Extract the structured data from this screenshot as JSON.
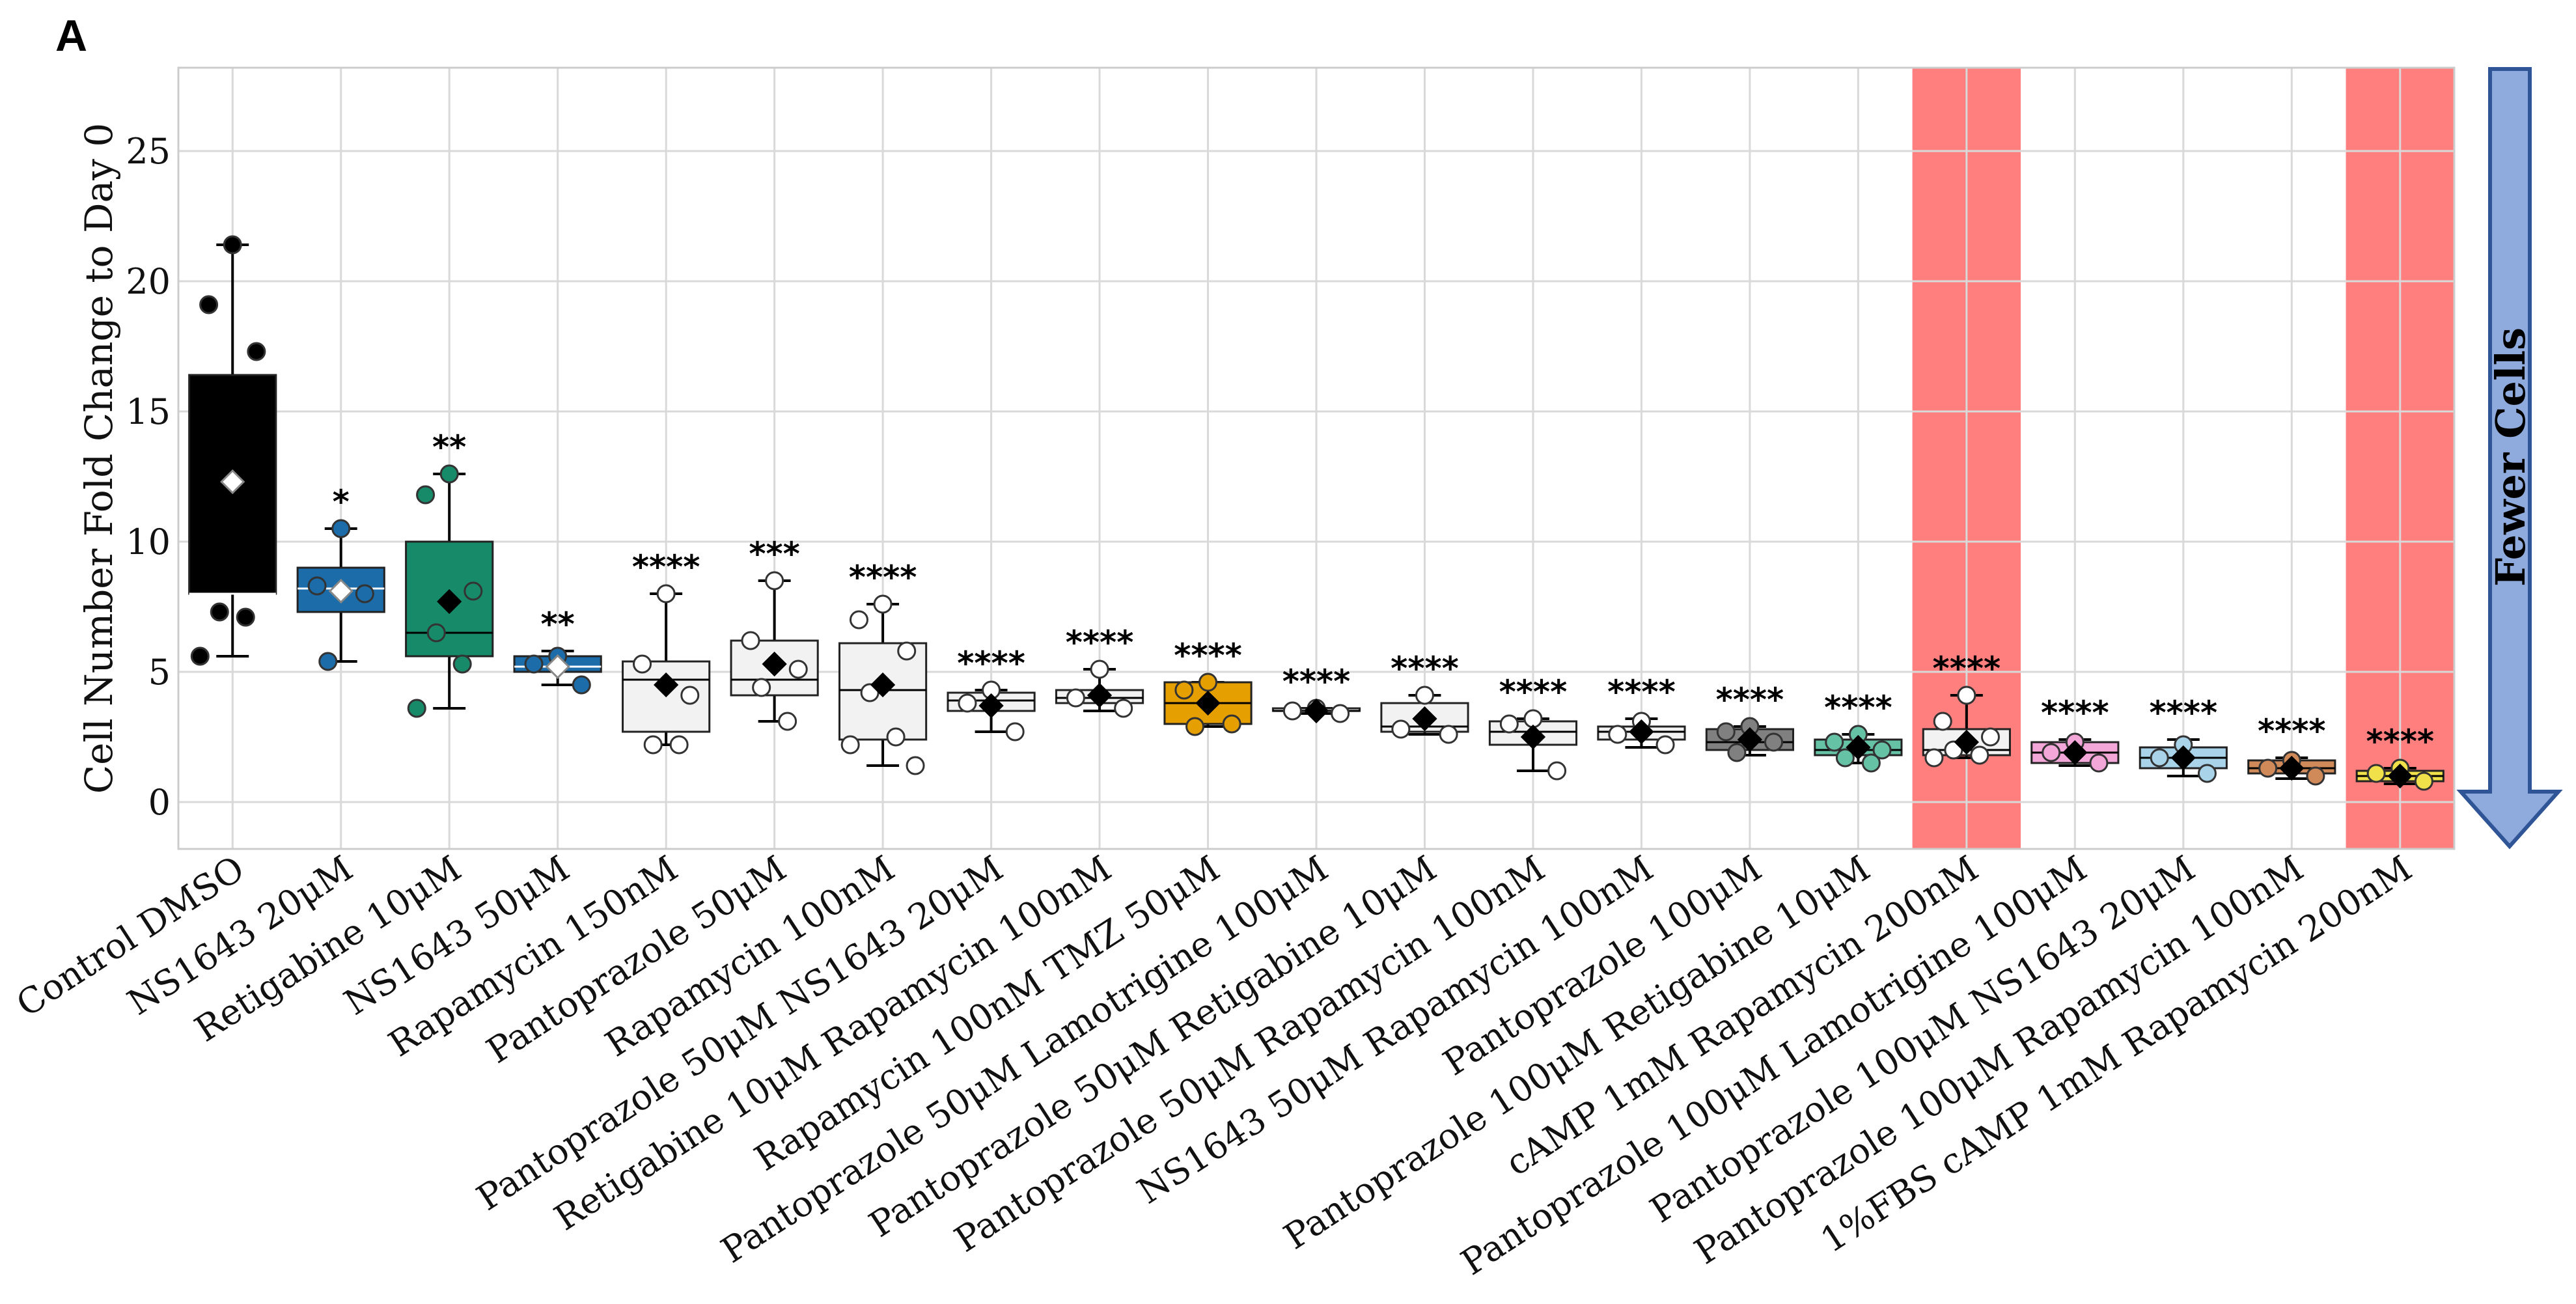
{
  "panel_label": "A",
  "arrow_label": "Fewer Cells",
  "colors": {
    "highlight": "#ff7f7f",
    "arrow_fill": "#8faadc",
    "arrow_stroke": "#2f5597",
    "grid": "#d9d9d9",
    "mean_marker_dark": "#000000",
    "mean_marker_light": "#ffffff"
  },
  "chart_data": {
    "type": "box",
    "title": "",
    "xlabel": "",
    "ylabel": "Cell Number Fold Change to Day 0",
    "ylim": [
      -1.8,
      28.2
    ],
    "yticks": [
      0,
      5,
      10,
      15,
      20,
      25
    ],
    "grid": true,
    "highlighted_categories": [
      "cAMP 1mM Rapamycin 200nM",
      "1%FBS cAMP 1mM Rapamycin 200nM"
    ],
    "groups": [
      {
        "label": "Control DMSO",
        "color": "#000000",
        "stat": "",
        "whisker_low": 5.6,
        "q1": 8.0,
        "median": 8.0,
        "q3": 16.4,
        "whisker_high": 21.4,
        "mean": 12.3,
        "points": [
          21.4,
          19.1,
          17.3,
          7.3,
          7.1,
          5.6
        ]
      },
      {
        "label": "NS1643 20μM",
        "color": "#1b6ca8",
        "stat": "*",
        "whisker_low": 5.4,
        "q1": 7.3,
        "median": 8.2,
        "q3": 9.0,
        "whisker_high": 10.5,
        "mean": 8.1,
        "points": [
          10.5,
          8.3,
          8.0,
          5.4
        ]
      },
      {
        "label": "Retigabine 10μM",
        "color": "#178b69",
        "stat": "**",
        "whisker_low": 3.6,
        "q1": 5.6,
        "median": 6.5,
        "q3": 10.0,
        "whisker_high": 12.6,
        "mean": 7.7,
        "points": [
          12.6,
          11.8,
          8.1,
          6.5,
          5.3,
          3.6
        ]
      },
      {
        "label": "NS1643 50μM",
        "color": "#1b6ca8",
        "stat": "**",
        "whisker_low": 4.5,
        "q1": 5.0,
        "median": 5.2,
        "q3": 5.6,
        "whisker_high": 5.8,
        "mean": 5.2,
        "points": [
          5.6,
          5.3,
          4.5
        ]
      },
      {
        "label": "Rapamycin 150nM",
        "color": "#f2f2f2",
        "stat": "****",
        "whisker_low": 2.2,
        "q1": 2.7,
        "median": 4.7,
        "q3": 5.4,
        "whisker_high": 8.0,
        "mean": 4.5,
        "points": [
          8.0,
          5.3,
          4.1,
          2.2,
          2.2
        ]
      },
      {
        "label": "Pantoprazole 50μM",
        "color": "#f2f2f2",
        "stat": "***",
        "whisker_low": 3.1,
        "q1": 4.1,
        "median": 4.7,
        "q3": 6.2,
        "whisker_high": 8.5,
        "mean": 5.3,
        "points": [
          8.5,
          6.2,
          5.1,
          4.4,
          3.1
        ]
      },
      {
        "label": "Rapamycin 100nM",
        "color": "#f2f2f2",
        "stat": "****",
        "whisker_low": 1.4,
        "q1": 2.4,
        "median": 4.3,
        "q3": 6.1,
        "whisker_high": 7.6,
        "mean": 4.5,
        "points": [
          7.6,
          7.0,
          5.8,
          4.2,
          2.5,
          2.2,
          1.4
        ]
      },
      {
        "label": "Pantoprazole 50μM NS1643 20μM",
        "color": "#f2f2f2",
        "stat": "****",
        "whisker_low": 2.7,
        "q1": 3.5,
        "median": 3.9,
        "q3": 4.2,
        "whisker_high": 4.3,
        "mean": 3.7,
        "points": [
          4.3,
          3.8,
          2.7
        ]
      },
      {
        "label": "Retigabine 10μM Rapamycin 100nM",
        "color": "#f2f2f2",
        "stat": "****",
        "whisker_low": 3.5,
        "q1": 3.8,
        "median": 4.0,
        "q3": 4.3,
        "whisker_high": 5.1,
        "mean": 4.1,
        "points": [
          5.1,
          4.0,
          3.6
        ]
      },
      {
        "label": "Rapamycin 100nM TMZ 50μM",
        "color": "#e69f00",
        "stat": "****",
        "whisker_low": 2.9,
        "q1": 3.0,
        "median": 3.8,
        "q3": 4.6,
        "whisker_high": 4.6,
        "mean": 3.8,
        "points": [
          4.6,
          4.3,
          3.0,
          2.9
        ]
      },
      {
        "label": "Pantoprazole 50μM Lamotrigine 100μM",
        "color": "#f2f2f2",
        "stat": "****",
        "whisker_low": 3.4,
        "q1": 3.5,
        "median": 3.5,
        "q3": 3.6,
        "whisker_high": 3.6,
        "mean": 3.5,
        "points": [
          3.6,
          3.5,
          3.4
        ]
      },
      {
        "label": "Pantoprazole 50μM Retigabine 10μM",
        "color": "#f2f2f2",
        "stat": "****",
        "whisker_low": 2.6,
        "q1": 2.7,
        "median": 2.9,
        "q3": 3.8,
        "whisker_high": 4.1,
        "mean": 3.2,
        "points": [
          4.1,
          2.8,
          2.6
        ]
      },
      {
        "label": "Pantoprazole 50μM Rapamycin 100nM",
        "color": "#f2f2f2",
        "stat": "****",
        "whisker_low": 1.2,
        "q1": 2.2,
        "median": 2.7,
        "q3": 3.1,
        "whisker_high": 3.2,
        "mean": 2.5,
        "points": [
          3.2,
          3.0,
          1.2
        ]
      },
      {
        "label": "NS1643 50μM Rapamycin 100nM",
        "color": "#f2f2f2",
        "stat": "****",
        "whisker_low": 2.1,
        "q1": 2.4,
        "median": 2.7,
        "q3": 2.9,
        "whisker_high": 3.2,
        "mean": 2.7,
        "points": [
          3.1,
          2.6,
          2.2
        ]
      },
      {
        "label": "Pantoprazole 100μM",
        "color": "#808080",
        "stat": "****",
        "whisker_low": 1.8,
        "q1": 2.0,
        "median": 2.3,
        "q3": 2.8,
        "whisker_high": 2.9,
        "mean": 2.4,
        "points": [
          2.9,
          2.7,
          2.3,
          1.9
        ]
      },
      {
        "label": "Pantoprazole 100μM Retigabine 10μM",
        "color": "#66c2a5",
        "stat": "****",
        "whisker_low": 1.5,
        "q1": 1.8,
        "median": 2.0,
        "q3": 2.4,
        "whisker_high": 2.6,
        "mean": 2.1,
        "points": [
          2.6,
          2.3,
          2.0,
          1.7,
          1.5
        ]
      },
      {
        "label": "cAMP 1mM Rapamycin 200nM",
        "color": "#f2f2f2",
        "stat": "****",
        "whisker_low": 1.7,
        "q1": 1.8,
        "median": 2.0,
        "q3": 2.8,
        "whisker_high": 4.1,
        "mean": 2.3,
        "points": [
          4.1,
          3.1,
          2.5,
          2.0,
          1.8,
          1.7
        ]
      },
      {
        "label": "Pantoprazole 100μM Lamotrigine 100μM",
        "color": "#f3a6d8",
        "stat": "****",
        "whisker_low": 1.4,
        "q1": 1.5,
        "median": 1.9,
        "q3": 2.3,
        "whisker_high": 2.4,
        "mean": 1.9,
        "points": [
          2.3,
          1.9,
          1.5
        ]
      },
      {
        "label": "Pantoprazole 100μM NS1643 20μM",
        "color": "#a9d3e8",
        "stat": "****",
        "whisker_low": 1.0,
        "q1": 1.3,
        "median": 1.7,
        "q3": 2.1,
        "whisker_high": 2.4,
        "mean": 1.7,
        "points": [
          2.2,
          1.7,
          1.1
        ]
      },
      {
        "label": "Pantoprazole 100μM Rapamycin 100nM",
        "color": "#d08a5a",
        "stat": "****",
        "whisker_low": 0.9,
        "q1": 1.1,
        "median": 1.3,
        "q3": 1.6,
        "whisker_high": 1.7,
        "mean": 1.3,
        "points": [
          1.6,
          1.3,
          1.0
        ]
      },
      {
        "label": "1%FBS cAMP 1mM Rapamycin 200nM",
        "color": "#f0e04a",
        "stat": "****",
        "whisker_low": 0.7,
        "q1": 0.8,
        "median": 1.0,
        "q3": 1.2,
        "whisker_high": 1.3,
        "mean": 1.0,
        "points": [
          1.3,
          1.1,
          0.8
        ]
      }
    ]
  }
}
